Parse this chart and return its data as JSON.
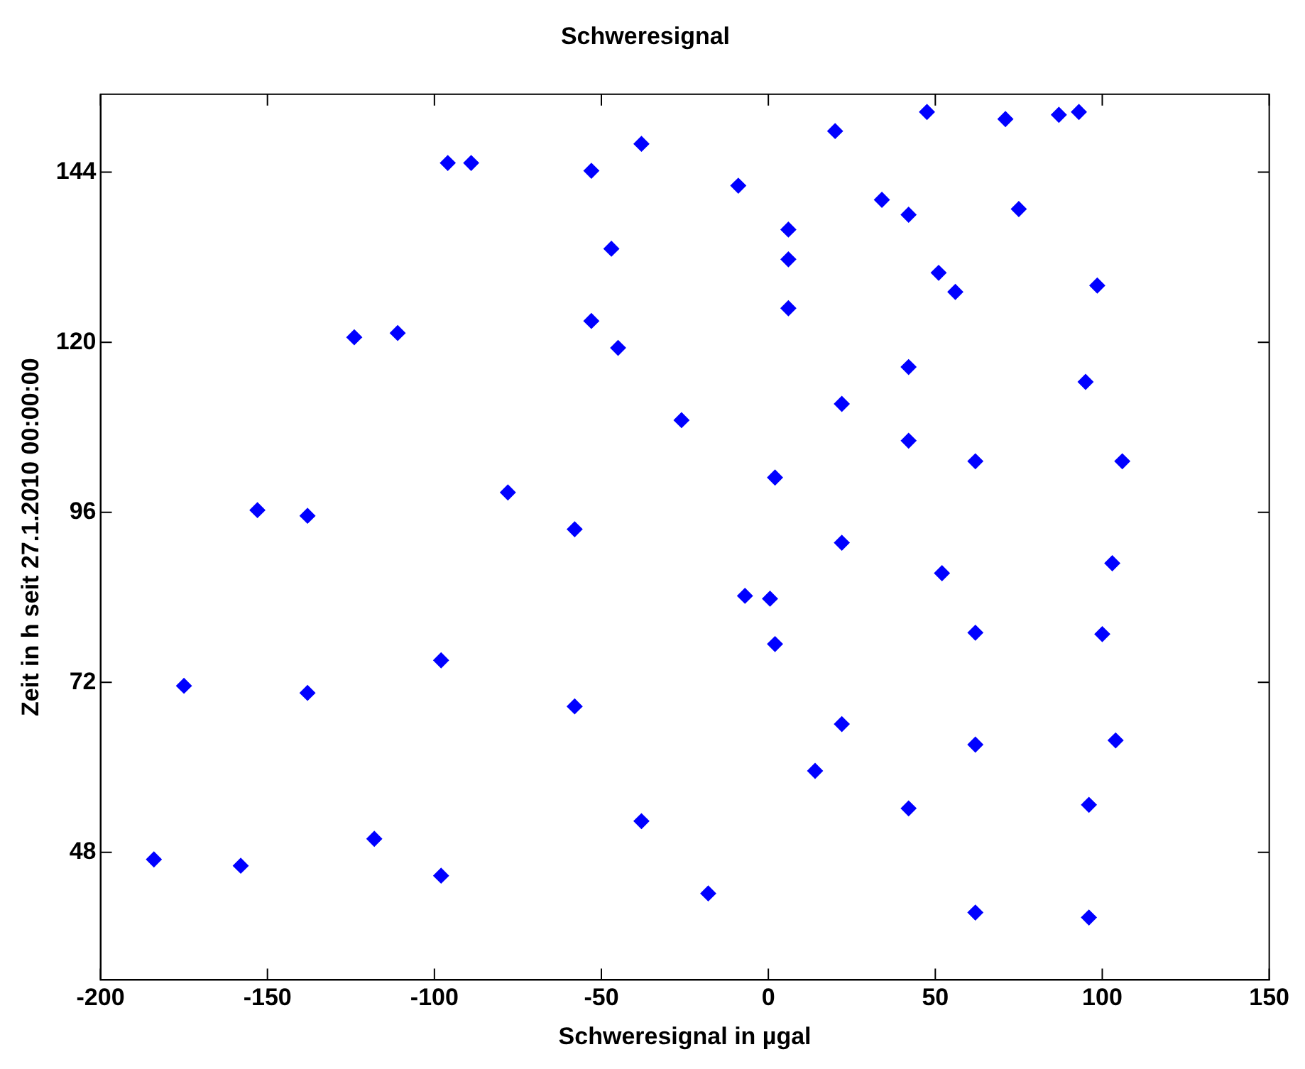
{
  "chart_data": {
    "type": "scatter",
    "title": "Schweresignal",
    "xlabel": "Schweresignal in µgal",
    "ylabel": "Zeit in h seit 27.1.2010 00:00:00",
    "xlim": [
      -200,
      150
    ],
    "xticks": [
      -200,
      -150,
      -100,
      -50,
      0,
      50,
      100,
      150
    ],
    "ylim": [
      30,
      155
    ],
    "yticks": [
      48,
      72,
      96,
      120,
      144
    ],
    "grid": false,
    "legend": false,
    "marker": "diamond",
    "series": [
      {
        "color": "#0000ff",
        "x": [
          96,
          62,
          -18,
          -98,
          -158,
          -184,
          -118,
          -38,
          42,
          96,
          14,
          62,
          104,
          22,
          -58,
          -138,
          -175,
          -98,
          2,
          62,
          100,
          0.5,
          -7,
          52,
          103,
          22,
          -58,
          -138,
          -153,
          -78,
          2,
          62,
          106,
          42,
          -26,
          22,
          95,
          42,
          -45,
          -124,
          -111,
          -53,
          6,
          56,
          98.5,
          51,
          6,
          -47,
          6,
          42,
          75,
          34,
          -9,
          -53,
          -89,
          -96,
          -38,
          20,
          71,
          87,
          93,
          47.5
        ],
        "values": [
          38.8,
          39.5,
          42.2,
          44.7,
          46.1,
          47,
          49.9,
          52.4,
          54.2,
          54.7,
          59.5,
          63.2,
          63.8,
          66.1,
          68.6,
          70.5,
          71.5,
          75.1,
          77.4,
          79,
          78.8,
          83.8,
          84.2,
          87.4,
          88.8,
          91.7,
          93.6,
          95.5,
          96.3,
          98.8,
          100.9,
          103.2,
          103.2,
          106.1,
          109,
          111.3,
          114.4,
          116.5,
          119.2,
          120.7,
          121.3,
          123,
          124.8,
          127.1,
          128,
          129.8,
          131.7,
          133.2,
          135.9,
          138,
          138.8,
          140.1,
          142.1,
          144.2,
          145.3,
          145.3,
          148,
          149.8,
          151.5,
          152.1,
          152.5,
          152.5
        ]
      }
    ]
  }
}
